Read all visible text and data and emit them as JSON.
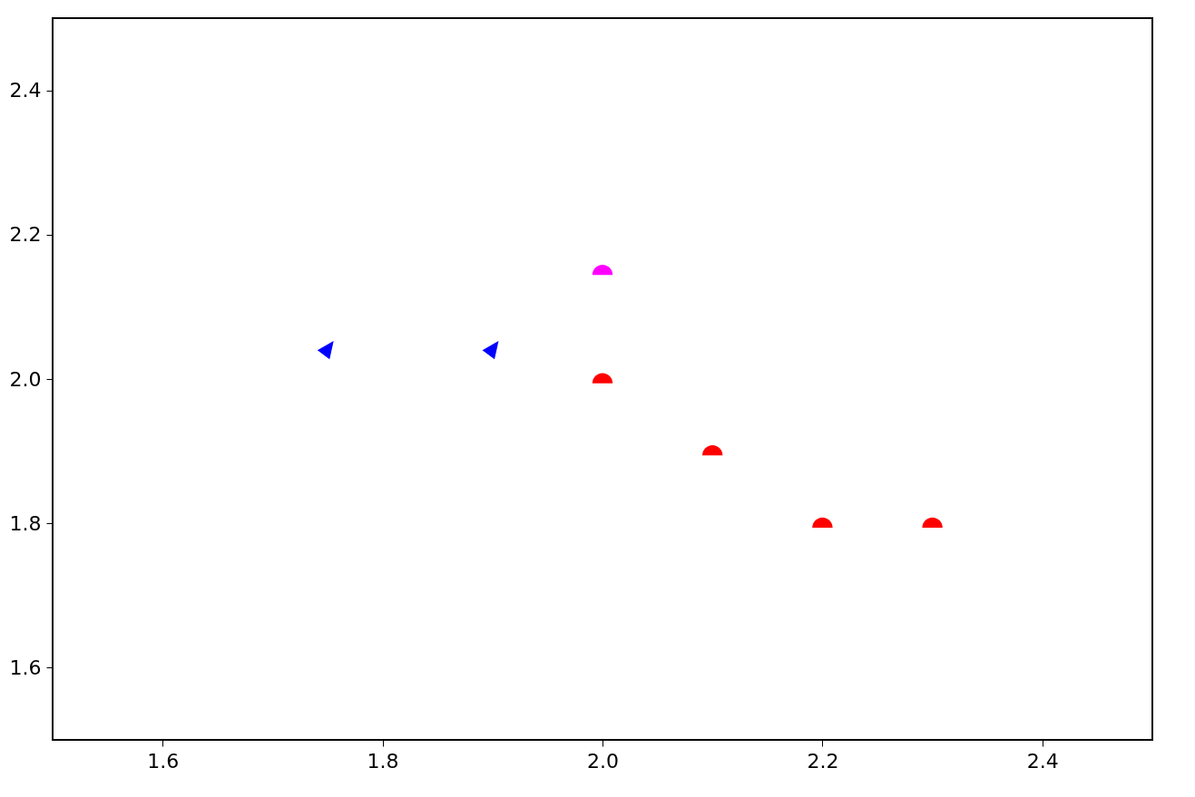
{
  "chart_data": {
    "type": "scatter",
    "series": [
      {
        "color": "#0000ff",
        "marker": "triangle",
        "x": [
          1.75,
          1.9
        ],
        "values": [
          2.04,
          2.04
        ]
      },
      {
        "color": "#ff00ff",
        "x": [
          2.0
        ],
        "values": [
          2.15
        ]
      },
      {
        "color": "#ff0000",
        "x": [
          2.0,
          2.1,
          2.2,
          2.3
        ],
        "values": [
          2.0,
          1.9,
          1.8,
          1.8
        ]
      }
    ],
    "xlim": [
      1.5,
      2.5
    ],
    "ylim": [
      1.5,
      2.5
    ],
    "xticks": [
      {
        "value": 1.6,
        "label": "1.6"
      },
      {
        "value": 1.8,
        "label": "1.8"
      },
      {
        "value": 2.0,
        "label": "2.0"
      },
      {
        "value": 2.2,
        "label": "2.2"
      },
      {
        "value": 2.4,
        "label": "2.4"
      }
    ],
    "yticks": [
      {
        "value": 1.6,
        "label": "1.6"
      },
      {
        "value": 1.8,
        "label": "1.8"
      },
      {
        "value": 2.0,
        "label": "2.0"
      },
      {
        "value": 2.2,
        "label": "2.2"
      },
      {
        "value": 2.4,
        "label": "2.4"
      }
    ],
    "grid": false
  }
}
